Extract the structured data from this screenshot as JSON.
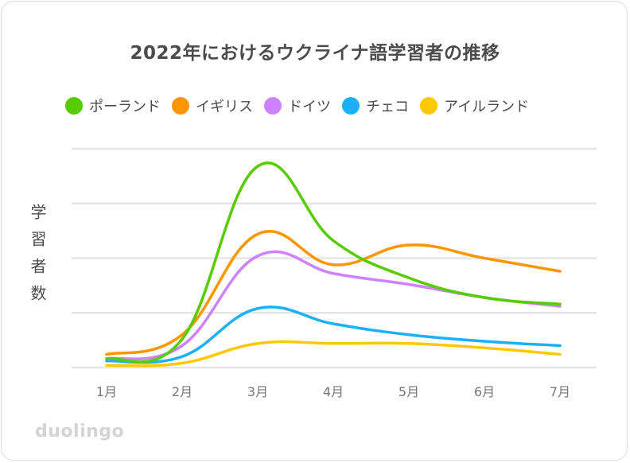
{
  "chart_data": {
    "type": "line",
    "title": "2022年におけるウクライナ語学習者の推移",
    "ylabel": "学習者数",
    "xlabel": "",
    "categories": [
      "1月",
      "2月",
      "3月",
      "4月",
      "5月",
      "6月",
      "7月"
    ],
    "ylim": [
      0,
      100
    ],
    "grid": true,
    "legend_position": "top",
    "series": [
      {
        "name": "ポーランド",
        "color": "#58cc02",
        "values": [
          4,
          13,
          92,
          58,
          41,
          32,
          29
        ]
      },
      {
        "name": "イギリス",
        "color": "#ff9600",
        "values": [
          6,
          15,
          61,
          47,
          56,
          50,
          44
        ]
      },
      {
        "name": "ドイツ",
        "color": "#ce82ff",
        "values": [
          4,
          10,
          51,
          43,
          38,
          32,
          28
        ]
      },
      {
        "name": "チェコ",
        "color": "#1cb0f6",
        "values": [
          3,
          5,
          27,
          20,
          15,
          12,
          10
        ]
      },
      {
        "name": "アイルランド",
        "color": "#ffc800",
        "values": [
          1,
          2,
          11,
          11,
          11,
          9,
          6
        ]
      }
    ]
  },
  "brand": {
    "text": "duolingo"
  }
}
